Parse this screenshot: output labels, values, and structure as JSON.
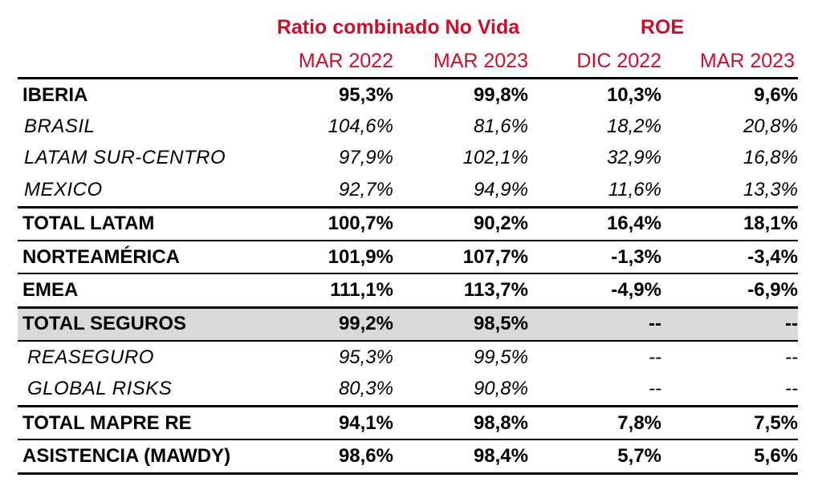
{
  "group_headers": {
    "ratio": "Ratio combinado No Vida",
    "roe": "ROE"
  },
  "column_headers": [
    "MAR 2022",
    "MAR 2023",
    "DIC 2022",
    "MAR 2023"
  ],
  "colors": {
    "header_red": "#c8102e",
    "shaded_row": "#d9d9d9"
  },
  "rows": [
    {
      "label": "IBERIA",
      "values": [
        "95,3%",
        "99,8%",
        "10,3%",
        "9,6%"
      ]
    },
    {
      "label": "BRASIL",
      "values": [
        "104,6%",
        "81,6%",
        "18,2%",
        "20,8%"
      ]
    },
    {
      "label": "LATAM SUR-CENTRO",
      "values": [
        "97,9%",
        "102,1%",
        "32,9%",
        "16,8%"
      ]
    },
    {
      "label": "MEXICO",
      "values": [
        "92,7%",
        "94,9%",
        "11,6%",
        "13,3%"
      ]
    },
    {
      "label": "TOTAL LATAM",
      "values": [
        "100,7%",
        "90,2%",
        "16,4%",
        "18,1%"
      ]
    },
    {
      "label": "NORTEAMÉRICA",
      "values": [
        "101,9%",
        "107,7%",
        "-1,3%",
        "-3,4%"
      ]
    },
    {
      "label": "EMEA",
      "values": [
        "111,1%",
        "113,7%",
        "-4,9%",
        "-6,9%"
      ]
    },
    {
      "label": "TOTAL SEGUROS",
      "values": [
        "99,2%",
        "98,5%",
        "--",
        "--"
      ]
    },
    {
      "label": "REASEGURO",
      "values": [
        "95,3%",
        "99,5%",
        "--",
        "--"
      ]
    },
    {
      "label": "GLOBAL RISKS",
      "values": [
        "80,3%",
        "90,8%",
        "--",
        "--"
      ]
    },
    {
      "label": "TOTAL MAPRE RE",
      "values": [
        "94,1%",
        "98,8%",
        "7,8%",
        "7,5%"
      ]
    },
    {
      "label": "ASISTENCIA (MAWDY)",
      "values": [
        "98,6%",
        "98,4%",
        "5,7%",
        "5,6%"
      ]
    }
  ]
}
